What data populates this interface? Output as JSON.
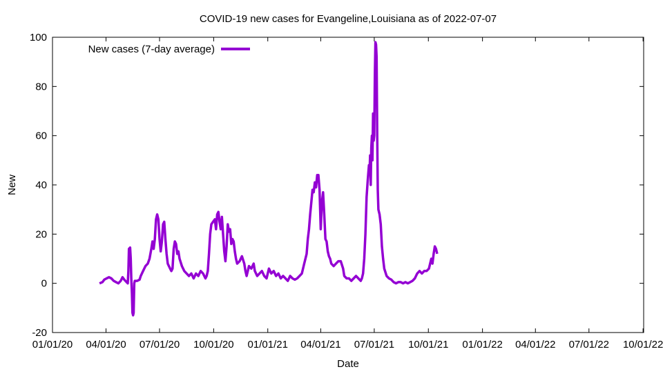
{
  "chart_data": {
    "type": "line",
    "title": "COVID-19 new cases for Evangeline,Louisiana as of 2022-07-07",
    "xlabel": "Date",
    "ylabel": "New",
    "ylim": [
      -20,
      100
    ],
    "yticks": [
      -20,
      0,
      20,
      40,
      60,
      80,
      100
    ],
    "x_range_days": [
      0,
      1005
    ],
    "xticks": [
      {
        "day": 0,
        "label": "01/01/20"
      },
      {
        "day": 91,
        "label": "04/01/20"
      },
      {
        "day": 182,
        "label": "07/01/20"
      },
      {
        "day": 274,
        "label": "10/01/20"
      },
      {
        "day": 366,
        "label": "01/01/21"
      },
      {
        "day": 456,
        "label": "04/01/21"
      },
      {
        "day": 547,
        "label": "07/01/21"
      },
      {
        "day": 639,
        "label": "10/01/21"
      },
      {
        "day": 731,
        "label": "01/01/22"
      },
      {
        "day": 821,
        "label": "04/01/22"
      },
      {
        "day": 912,
        "label": "07/01/22"
      },
      {
        "day": 1004,
        "label": "10/01/22"
      }
    ],
    "legend": {
      "position": "top-left",
      "label": "New cases (7-day average)"
    },
    "series": [
      {
        "name": "New cases (7-day average)",
        "color": "#9400d3",
        "points": [
          [
            80,
            0
          ],
          [
            85,
            0.5
          ],
          [
            88,
            1.5
          ],
          [
            92,
            2
          ],
          [
            96,
            2.5
          ],
          [
            100,
            2
          ],
          [
            104,
            1
          ],
          [
            108,
            0.5
          ],
          [
            112,
            0
          ],
          [
            116,
            1
          ],
          [
            119,
            2.5
          ],
          [
            122,
            1.5
          ],
          [
            126,
            0.5
          ],
          [
            128,
            0
          ],
          [
            129,
            5
          ],
          [
            130,
            14
          ],
          [
            132,
            14.5
          ],
          [
            133,
            10
          ],
          [
            134,
            2
          ],
          [
            135,
            -4
          ],
          [
            136,
            -12
          ],
          [
            137,
            -13
          ],
          [
            138,
            -12
          ],
          [
            139,
            0
          ],
          [
            140,
            1
          ],
          [
            144,
            1
          ],
          [
            148,
            1.5
          ],
          [
            150,
            3
          ],
          [
            154,
            5
          ],
          [
            158,
            7
          ],
          [
            162,
            8
          ],
          [
            165,
            10
          ],
          [
            168,
            14
          ],
          [
            170,
            17
          ],
          [
            172,
            14
          ],
          [
            174,
            18
          ],
          [
            176,
            26
          ],
          [
            178,
            28
          ],
          [
            180,
            26
          ],
          [
            182,
            18
          ],
          [
            184,
            13
          ],
          [
            186,
            17
          ],
          [
            188,
            24
          ],
          [
            190,
            25
          ],
          [
            192,
            18
          ],
          [
            194,
            12
          ],
          [
            196,
            8
          ],
          [
            198,
            7
          ],
          [
            200,
            6
          ],
          [
            202,
            5
          ],
          [
            204,
            6
          ],
          [
            206,
            14
          ],
          [
            208,
            17
          ],
          [
            210,
            16
          ],
          [
            212,
            12
          ],
          [
            214,
            13
          ],
          [
            216,
            10
          ],
          [
            220,
            7
          ],
          [
            224,
            5
          ],
          [
            228,
            4
          ],
          [
            232,
            3
          ],
          [
            236,
            4
          ],
          [
            240,
            2
          ],
          [
            244,
            4
          ],
          [
            248,
            3
          ],
          [
            252,
            5
          ],
          [
            256,
            4
          ],
          [
            260,
            2
          ],
          [
            262,
            3
          ],
          [
            264,
            5
          ],
          [
            266,
            12
          ],
          [
            268,
            20
          ],
          [
            270,
            24
          ],
          [
            273,
            25
          ],
          [
            276,
            26
          ],
          [
            278,
            22
          ],
          [
            280,
            28
          ],
          [
            282,
            29
          ],
          [
            284,
            25
          ],
          [
            286,
            22
          ],
          [
            288,
            27
          ],
          [
            290,
            20
          ],
          [
            292,
            13
          ],
          [
            294,
            9
          ],
          [
            296,
            15
          ],
          [
            298,
            24
          ],
          [
            300,
            21
          ],
          [
            302,
            22
          ],
          [
            304,
            16
          ],
          [
            306,
            18
          ],
          [
            308,
            17
          ],
          [
            310,
            13
          ],
          [
            312,
            10
          ],
          [
            314,
            8
          ],
          [
            318,
            9
          ],
          [
            322,
            11
          ],
          [
            326,
            8
          ],
          [
            328,
            5
          ],
          [
            330,
            3
          ],
          [
            334,
            7
          ],
          [
            338,
            6
          ],
          [
            342,
            8
          ],
          [
            344,
            5
          ],
          [
            348,
            3
          ],
          [
            352,
            4
          ],
          [
            356,
            5
          ],
          [
            360,
            3
          ],
          [
            364,
            2
          ],
          [
            368,
            6
          ],
          [
            372,
            4
          ],
          [
            376,
            5
          ],
          [
            380,
            3
          ],
          [
            384,
            4
          ],
          [
            388,
            2
          ],
          [
            392,
            3
          ],
          [
            396,
            2
          ],
          [
            400,
            1
          ],
          [
            404,
            3
          ],
          [
            408,
            2
          ],
          [
            412,
            1.5
          ],
          [
            416,
            2
          ],
          [
            420,
            3
          ],
          [
            424,
            4
          ],
          [
            428,
            8
          ],
          [
            432,
            12
          ],
          [
            434,
            18
          ],
          [
            436,
            22
          ],
          [
            438,
            28
          ],
          [
            440,
            33
          ],
          [
            442,
            38
          ],
          [
            444,
            37
          ],
          [
            446,
            41
          ],
          [
            448,
            39
          ],
          [
            450,
            44
          ],
          [
            452,
            44
          ],
          [
            454,
            38
          ],
          [
            456,
            22
          ],
          [
            458,
            33
          ],
          [
            460,
            37
          ],
          [
            462,
            28
          ],
          [
            464,
            18
          ],
          [
            466,
            17
          ],
          [
            468,
            13
          ],
          [
            470,
            11
          ],
          [
            472,
            10
          ],
          [
            474,
            8
          ],
          [
            478,
            7
          ],
          [
            482,
            8
          ],
          [
            486,
            9
          ],
          [
            490,
            9
          ],
          [
            494,
            6
          ],
          [
            496,
            3
          ],
          [
            500,
            2
          ],
          [
            504,
            2
          ],
          [
            508,
            1
          ],
          [
            512,
            2
          ],
          [
            516,
            3
          ],
          [
            520,
            2
          ],
          [
            524,
            1
          ],
          [
            526,
            2
          ],
          [
            528,
            4
          ],
          [
            530,
            10
          ],
          [
            532,
            20
          ],
          [
            534,
            35
          ],
          [
            536,
            42
          ],
          [
            538,
            48
          ],
          [
            539,
            45
          ],
          [
            540,
            52
          ],
          [
            541,
            40
          ],
          [
            542,
            55
          ],
          [
            543,
            60
          ],
          [
            544,
            50
          ],
          [
            545,
            69
          ],
          [
            546,
            58
          ],
          [
            547,
            60
          ],
          [
            548,
            85
          ],
          [
            549,
            98
          ],
          [
            550,
            97
          ],
          [
            551,
            92
          ],
          [
            552,
            60
          ],
          [
            553,
            38
          ],
          [
            554,
            30
          ],
          [
            556,
            28
          ],
          [
            558,
            24
          ],
          [
            560,
            15
          ],
          [
            562,
            10
          ],
          [
            564,
            6
          ],
          [
            568,
            3
          ],
          [
            572,
            2
          ],
          [
            576,
            1.5
          ],
          [
            580,
            0.5
          ],
          [
            584,
            0
          ],
          [
            588,
            0.5
          ],
          [
            592,
            0.5
          ],
          [
            596,
            0
          ],
          [
            600,
            0.5
          ],
          [
            604,
            0
          ],
          [
            608,
            0.5
          ],
          [
            612,
            1
          ],
          [
            616,
            2
          ],
          [
            620,
            4
          ],
          [
            624,
            5
          ],
          [
            628,
            4
          ],
          [
            632,
            5
          ],
          [
            636,
            5
          ],
          [
            640,
            6
          ],
          [
            642,
            8
          ],
          [
            644,
            10
          ],
          [
            646,
            8
          ],
          [
            648,
            12
          ],
          [
            650,
            15
          ],
          [
            652,
            14
          ],
          [
            654,
            12
          ]
        ]
      }
    ]
  }
}
